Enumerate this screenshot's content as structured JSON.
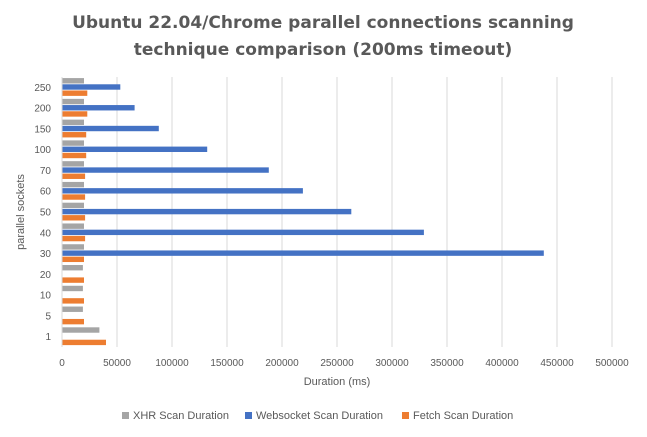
{
  "chart_data": {
    "type": "bar",
    "orientation": "horizontal",
    "title": [
      "Ubuntu 22.04/Chrome parallel connections scanning",
      "technique comparison (200ms timeout)"
    ],
    "xlabel": "Duration (ms)",
    "ylabel": "parallel sockets",
    "categories": [
      "1",
      "5",
      "10",
      "20",
      "30",
      "40",
      "50",
      "60",
      "70",
      "100",
      "150",
      "200",
      "250"
    ],
    "xlim": [
      0,
      500000
    ],
    "x_ticks": [
      "0",
      "50000",
      "100000",
      "150000",
      "200000",
      "250000",
      "300000",
      "350000",
      "400000",
      "450000",
      "500000"
    ],
    "grid": "vertical",
    "legend_position": "bottom",
    "series": [
      {
        "name": "XHR Scan Duration",
        "color": "#a5a5a5",
        "values": [
          34000,
          19000,
          19000,
          19000,
          20000,
          20000,
          20000,
          20000,
          20000,
          20000,
          20000,
          20000,
          20000
        ]
      },
      {
        "name": "Websocket Scan Duration",
        "color": "#4472c4",
        "values": [
          0,
          0,
          0,
          0,
          438000,
          329000,
          263000,
          219000,
          188000,
          132000,
          88000,
          66000,
          53000
        ]
      },
      {
        "name": "Fetch Scan Duration",
        "color": "#ed7d31",
        "values": [
          40000,
          20000,
          20000,
          20000,
          20000,
          21000,
          21000,
          21000,
          21000,
          22000,
          22000,
          23000,
          23000
        ]
      }
    ]
  }
}
